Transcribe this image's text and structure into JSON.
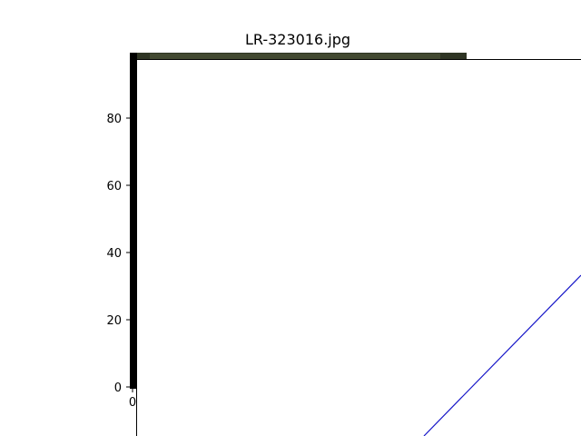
{
  "window": {
    "title": "LR-323016.jpg"
  },
  "axes": {
    "y_tick_labels": [
      "0",
      "20",
      "40",
      "60",
      "80"
    ],
    "x_tick_labels": [
      "0"
    ]
  },
  "colors": {
    "frame": "#000000",
    "image_strip": "#2f3524",
    "overlay_background": "#ffffff",
    "overlay_border": "#000000",
    "diagonal_line": "#1515c8"
  }
}
